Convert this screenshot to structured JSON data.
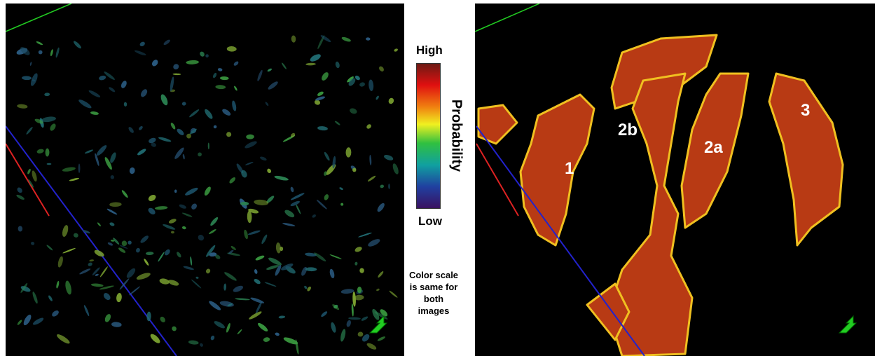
{
  "colorbar": {
    "high": "High",
    "low": "Low",
    "title": "Probability"
  },
  "note": "Color scale is same for both images",
  "right_panel": {
    "labels": [
      "1",
      "2b",
      "2a",
      "3"
    ]
  }
}
